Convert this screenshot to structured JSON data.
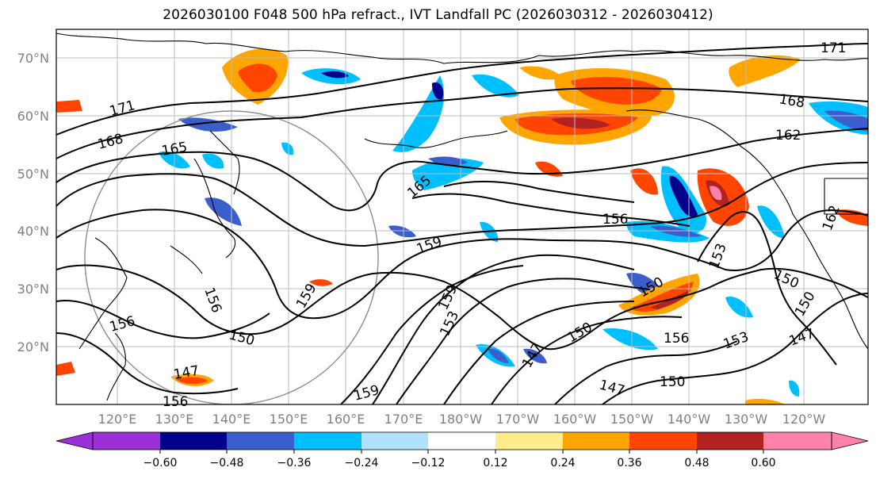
{
  "title": "2026030100 F048 500 hPa refract., IVT Landfall PC (2026030312 - 2026030412)",
  "lat_labels": [
    "70°N",
    "60°N",
    "50°N",
    "40°N",
    "30°N",
    "20°N"
  ],
  "lon_labels": [
    "120°E",
    "130°E",
    "140°E",
    "150°E",
    "160°E",
    "170°E",
    "180°W",
    "170°W",
    "160°W",
    "150°W",
    "140°W",
    "130°W",
    "120°W"
  ],
  "colorbar": {
    "ticks": [
      "−0.60",
      "−0.48",
      "−0.36",
      "−0.24",
      "−0.12",
      "0.12",
      "0.24",
      "0.36",
      "0.48",
      "0.60"
    ],
    "colors": [
      "#9b30d9",
      "#00008b",
      "#3a5fcd",
      "#00bfff",
      "#b0e2ff",
      "#ffffff",
      "#ffec8b",
      "#ffa500",
      "#ff4500",
      "#b22222",
      "#ff82ab"
    ]
  },
  "contour_labels": [
    "171",
    "168",
    "165",
    "162",
    "159",
    "156",
    "153",
    "150",
    "147",
    "171",
    "168",
    "162",
    "165",
    "156",
    "159",
    "153",
    "150",
    "156",
    "153",
    "150",
    "147",
    "150",
    "150",
    "147",
    "150",
    "156",
    "159",
    "156",
    "159",
    "147"
  ]
}
